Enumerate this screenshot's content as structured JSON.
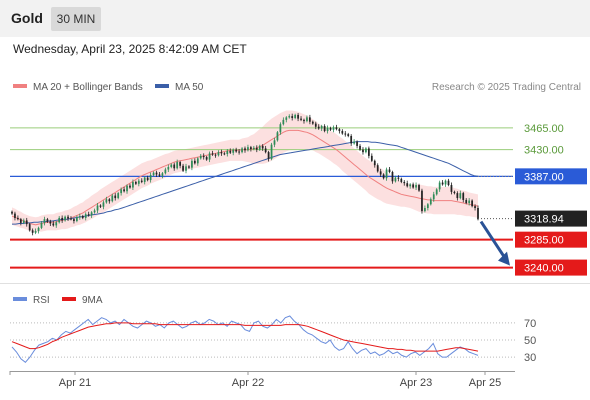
{
  "header": {
    "title": "Gold",
    "timeframe": "30 MIN"
  },
  "timestamp": "Wednesday, April 23, 2025 8:42:09 AM CET",
  "legend": {
    "bollinger": "MA 20 + Bollinger Bands",
    "ma50": "MA 50",
    "credit": "Research © 2025 Trading Central"
  },
  "colors": {
    "up_candle": "#2e8b57",
    "down_candle": "#222222",
    "ma20": "#f08080",
    "band_fill": "#fbd5d5",
    "ma50": "#3b5fa8",
    "resistance": "#9acd7a",
    "pivot": "#2a5bd7",
    "support": "#e41a1a",
    "rsi": "#6a8ddc",
    "rsi_ma": "#e41a1a",
    "arrow": "#2a5296"
  },
  "rsi_legend": {
    "rsi": "RSI",
    "ma": "9MA"
  },
  "chart_data": [
    {
      "type": "candlestick",
      "title": "Gold",
      "ylim": [
        3220,
        3510
      ],
      "x_ticks": [
        "Apr 21",
        "Apr 22",
        "Apr 23",
        "Apr 25"
      ],
      "last_price": 3318.94,
      "levels": [
        {
          "value": 3465.0,
          "label": "3465.00",
          "kind": "resistance"
        },
        {
          "value": 3430.0,
          "label": "3430.00",
          "kind": "resistance"
        },
        {
          "value": 3387.0,
          "label": "3387.00",
          "kind": "pivot"
        },
        {
          "value": 3285.0,
          "label": "3285.00",
          "kind": "support"
        },
        {
          "value": 3240.0,
          "label": "3240.00",
          "kind": "support"
        }
      ],
      "close_series": [
        3327,
        3320,
        3318,
        3312,
        3316,
        3310,
        3300,
        3296,
        3299,
        3304,
        3312,
        3318,
        3314,
        3311,
        3308,
        3313,
        3320,
        3316,
        3322,
        3319,
        3318,
        3315,
        3321,
        3323,
        3320,
        3326,
        3324,
        3329,
        3332,
        3340,
        3338,
        3345,
        3350,
        3347,
        3356,
        3352,
        3360,
        3366,
        3363,
        3372,
        3369,
        3378,
        3375,
        3380,
        3378,
        3385,
        3381,
        3389,
        3393,
        3390,
        3388,
        3392,
        3398,
        3402,
        3406,
        3400,
        3410,
        3404,
        3396,
        3403,
        3401,
        3412,
        3408,
        3416,
        3420,
        3418,
        3414,
        3424,
        3422,
        3421,
        3426,
        3424,
        3423,
        3428,
        3425,
        3430,
        3427,
        3426,
        3432,
        3429,
        3434,
        3431,
        3433,
        3430,
        3436,
        3432,
        3426,
        3415,
        3438,
        3445,
        3458,
        3471,
        3478,
        3482,
        3484,
        3481,
        3486,
        3480,
        3478,
        3476,
        3482,
        3475,
        3472,
        3467,
        3464,
        3468,
        3460,
        3465,
        3462,
        3466,
        3463,
        3460,
        3456,
        3455,
        3452,
        3440,
        3443,
        3436,
        3430,
        3426,
        3432,
        3420,
        3412,
        3405,
        3395,
        3390,
        3384,
        3398,
        3394,
        3379,
        3385,
        3383,
        3378,
        3376,
        3371,
        3374,
        3369,
        3373,
        3364,
        3331,
        3336,
        3342,
        3350,
        3358,
        3366,
        3377,
        3374,
        3380,
        3373,
        3362,
        3360,
        3352,
        3360,
        3349,
        3344,
        3348,
        3339,
        3336,
        3318
      ],
      "ma20_series": [
        3323,
        3321,
        3319,
        3317,
        3315,
        3313,
        3311,
        3310,
        3309,
        3310,
        3311,
        3312,
        3313,
        3313,
        3313,
        3314,
        3315,
        3316,
        3317,
        3318,
        3320,
        3322,
        3324,
        3326,
        3328,
        3331,
        3334,
        3337,
        3340,
        3343,
        3346,
        3349,
        3352,
        3355,
        3358,
        3361,
        3364,
        3367,
        3370,
        3373,
        3376,
        3379,
        3382,
        3385,
        3388,
        3390,
        3392,
        3394,
        3396,
        3398,
        3400,
        3402,
        3404,
        3406,
        3408,
        3410,
        3411,
        3412,
        3413,
        3414,
        3415,
        3416,
        3417,
        3418,
        3419,
        3420,
        3421,
        3422,
        3423,
        3424,
        3425,
        3426,
        3427,
        3428,
        3429,
        3429,
        3429,
        3429,
        3430,
        3430,
        3430,
        3431,
        3431,
        3433,
        3435,
        3437,
        3440,
        3443,
        3446,
        3449,
        3452,
        3455,
        3458,
        3460,
        3461,
        3461,
        3461,
        3461,
        3460,
        3459,
        3458,
        3456,
        3454,
        3451,
        3448,
        3445,
        3442,
        3439,
        3436,
        3433,
        3430,
        3426,
        3422,
        3418,
        3414,
        3410,
        3406,
        3402,
        3398,
        3394,
        3390,
        3386,
        3383,
        3380,
        3377,
        3374,
        3371,
        3368,
        3366,
        3364,
        3362,
        3360,
        3358,
        3357,
        3356,
        3355,
        3354,
        3353,
        3352,
        3351,
        3350,
        3349,
        3349,
        3348,
        3348,
        3348,
        3348,
        3348,
        3348,
        3348,
        3347,
        3346,
        3345,
        3344,
        3343,
        3342,
        3341,
        3340,
        3339
      ],
      "ma50_series": [
        3310,
        3310,
        3311,
        3311,
        3312,
        3312,
        3313,
        3313,
        3314,
        3314,
        3315,
        3315,
        3316,
        3317,
        3318,
        3318,
        3319,
        3320,
        3321,
        3322,
        3323,
        3324,
        3325,
        3326,
        3327,
        3328,
        3330,
        3331,
        3333,
        3334,
        3336,
        3338,
        3340,
        3342,
        3344,
        3346,
        3348,
        3350,
        3352,
        3354,
        3356,
        3358,
        3360,
        3362,
        3364,
        3366,
        3368,
        3370,
        3372,
        3374,
        3376,
        3378,
        3380,
        3382,
        3384,
        3386,
        3388,
        3390,
        3392,
        3394,
        3396,
        3398,
        3400,
        3402,
        3404,
        3406,
        3408,
        3410,
        3412,
        3414,
        3416,
        3418,
        3420,
        3422,
        3423,
        3424,
        3425,
        3426,
        3427,
        3428,
        3429,
        3430,
        3431,
        3432,
        3433,
        3434,
        3435,
        3436,
        3437,
        3438,
        3439,
        3440,
        3441,
        3442,
        3443,
        3443,
        3443,
        3443,
        3442,
        3442,
        3441,
        3440,
        3439,
        3438,
        3437,
        3436,
        3434,
        3432,
        3430,
        3428,
        3426,
        3424,
        3422,
        3420,
        3418,
        3416,
        3414,
        3412,
        3410,
        3408,
        3405,
        3402,
        3399,
        3396,
        3393,
        3390,
        3388,
        3387
      ],
      "band_width": [
        14,
        14,
        13,
        13,
        12,
        12,
        12,
        12,
        12,
        12,
        13,
        13,
        13,
        13,
        13,
        14,
        14,
        14,
        15,
        15,
        15,
        16,
        16,
        17,
        17,
        18,
        18,
        19,
        19,
        19,
        20,
        20,
        20,
        20,
        20,
        20,
        20,
        20,
        20,
        20,
        20,
        20,
        20,
        20,
        20,
        20,
        20,
        19,
        19,
        19,
        19,
        19,
        19,
        18,
        18,
        18,
        18,
        18,
        17,
        17,
        17,
        17,
        17,
        17,
        17,
        17,
        17,
        17,
        17,
        17,
        17,
        17,
        17,
        17,
        17,
        17,
        17,
        17,
        18,
        19,
        20,
        22,
        24,
        26,
        28,
        30,
        32,
        33,
        34,
        34,
        34,
        34,
        33,
        33,
        32,
        32,
        31,
        30,
        29,
        28,
        27,
        26,
        25,
        25,
        24,
        24,
        24,
        24,
        24,
        25,
        25,
        25,
        26,
        26,
        26,
        26,
        26,
        26,
        26,
        26,
        26,
        27,
        27,
        27,
        27,
        26,
        26,
        25,
        24,
        23,
        22,
        21,
        20,
        19,
        19,
        19,
        20,
        21,
        22,
        22,
        22,
        22,
        22,
        22,
        22,
        22,
        22,
        22,
        22,
        22,
        21,
        21,
        20,
        20,
        20,
        19,
        19,
        19,
        19
      ]
    },
    {
      "type": "line",
      "title": "RSI",
      "ylim": [
        15,
        85
      ],
      "y_ticks": [
        70,
        50,
        30
      ],
      "series": [
        {
          "name": "RSI",
          "values": [
            42,
            36,
            28,
            24,
            30,
            38,
            44,
            46,
            48,
            52,
            50,
            56,
            60,
            58,
            62,
            66,
            70,
            74,
            68,
            72,
            76,
            74,
            70,
            72,
            68,
            74,
            70,
            66,
            64,
            68,
            72,
            70,
            66,
            68,
            64,
            70,
            72,
            68,
            64,
            66,
            70,
            72,
            68,
            70,
            74,
            72,
            68,
            70,
            66,
            72,
            70,
            68,
            62,
            60,
            70,
            72,
            66,
            64,
            68,
            74,
            70,
            76,
            78,
            72,
            68,
            62,
            58,
            56,
            52,
            48,
            46,
            50,
            42,
            38,
            40,
            48,
            40,
            34,
            38,
            40,
            34,
            36,
            32,
            34,
            38,
            34,
            36,
            32,
            30,
            34,
            36,
            32,
            36,
            40,
            46,
            34,
            30,
            30,
            34,
            38,
            42,
            40,
            36,
            34,
            32
          ]
        },
        {
          "name": "9MA",
          "values": [
            48,
            46,
            44,
            42,
            40,
            40,
            41,
            43,
            45,
            48,
            50,
            53,
            55,
            57,
            59,
            61,
            63,
            65,
            66,
            67,
            68,
            69,
            69,
            70,
            70,
            70,
            70,
            69,
            69,
            69,
            69,
            69,
            69,
            68,
            68,
            68,
            68,
            68,
            68,
            68,
            68,
            68,
            68,
            68,
            68,
            68,
            68,
            68,
            68,
            68,
            68,
            68,
            67,
            67,
            67,
            67,
            67,
            67,
            67,
            67,
            67,
            68,
            68,
            68,
            68,
            67,
            66,
            64,
            62,
            60,
            58,
            56,
            54,
            52,
            50,
            49,
            48,
            47,
            46,
            45,
            44,
            43,
            42,
            41,
            40,
            40,
            39,
            39,
            38,
            38,
            37,
            37,
            37,
            37,
            37,
            37,
            38,
            39,
            40,
            41,
            41,
            40,
            39,
            38,
            37
          ]
        }
      ]
    }
  ]
}
